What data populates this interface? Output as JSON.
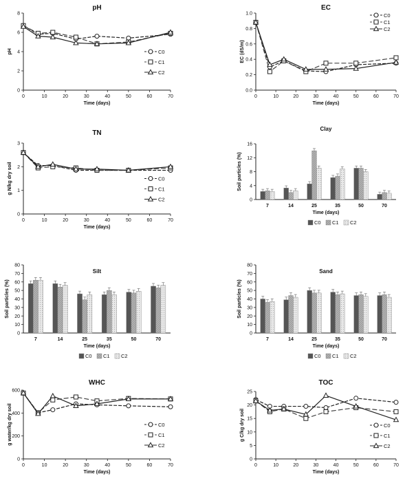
{
  "colors": {
    "c0_line": "#222222",
    "c1_line": "#444444",
    "c2_line": "#222222",
    "c0_bar": "#555555",
    "c1_bar": "#b3b3b3",
    "c2_bar": "#e8e8e8"
  },
  "chart_data": [
    {
      "type": "line",
      "title": "pH",
      "xlabel": "Time (days)",
      "ylabel": "pH",
      "x": [
        0,
        7,
        14,
        25,
        35,
        50,
        70
      ],
      "xlim": [
        0,
        70
      ],
      "ylim": [
        0,
        8
      ],
      "xticks": [
        "0",
        "10",
        "20",
        "30",
        "40",
        "50",
        "60",
        "70"
      ],
      "yticks": [
        "0",
        "2",
        "4",
        "6",
        "8"
      ],
      "legend_position": "right",
      "series": [
        {
          "name": "C0",
          "values": [
            6.7,
            5.8,
            5.9,
            5.3,
            5.6,
            5.4,
            5.8
          ]
        },
        {
          "name": "C1",
          "values": [
            6.7,
            5.9,
            6.0,
            5.5,
            4.8,
            5.0,
            5.9
          ]
        },
        {
          "name": "C2",
          "values": [
            6.6,
            5.6,
            5.5,
            4.9,
            4.8,
            4.9,
            6.0
          ]
        }
      ]
    },
    {
      "type": "line",
      "title": "EC",
      "xlabel": "Time (days)",
      "ylabel": "EC (dS/m)",
      "x": [
        0,
        7,
        14,
        25,
        35,
        50,
        70
      ],
      "xlim": [
        0,
        70
      ],
      "ylim": [
        0,
        1.0
      ],
      "xticks": [
        "0",
        "10",
        "20",
        "30",
        "40",
        "50",
        "60",
        "70"
      ],
      "yticks": [
        "0.0",
        "0.2",
        "0.4",
        "0.6",
        "0.8",
        "1.0"
      ],
      "legend_position": "top-right",
      "series": [
        {
          "name": "C0",
          "values": [
            0.88,
            0.3,
            0.38,
            0.25,
            0.24,
            0.33,
            0.35
          ]
        },
        {
          "name": "C1",
          "values": [
            0.88,
            0.24,
            0.38,
            0.24,
            0.35,
            0.35,
            0.42
          ]
        },
        {
          "name": "C2",
          "values": [
            0.88,
            0.33,
            0.4,
            0.27,
            0.27,
            0.28,
            0.36
          ]
        }
      ]
    },
    {
      "type": "line",
      "title": "TN",
      "xlabel": "Time (days)",
      "ylabel": "g N/kg dry soil",
      "x": [
        0,
        7,
        14,
        25,
        35,
        50,
        70
      ],
      "xlim": [
        0,
        70
      ],
      "ylim": [
        0,
        3
      ],
      "xticks": [
        "0",
        "10",
        "20",
        "30",
        "40",
        "50",
        "60",
        "70"
      ],
      "yticks": [
        "0",
        "1",
        "2",
        "3"
      ],
      "legend_position": "right",
      "series": [
        {
          "name": "C0",
          "values": [
            2.6,
            2.05,
            2.05,
            1.85,
            1.85,
            1.85,
            1.85
          ]
        },
        {
          "name": "C1",
          "values": [
            2.6,
            1.95,
            2.0,
            1.95,
            1.85,
            1.85,
            1.95
          ]
        },
        {
          "name": "C2",
          "values": [
            2.6,
            2.0,
            2.1,
            1.9,
            1.9,
            1.85,
            2.0
          ]
        }
      ]
    },
    {
      "type": "bar",
      "title": "Clay",
      "xlabel": "Time (days)",
      "ylabel": "Soil particles (%)",
      "categories": [
        "7",
        "14",
        "25",
        "35",
        "50",
        "70"
      ],
      "ylim": [
        0,
        16
      ],
      "yticks": [
        "0",
        "4",
        "8",
        "12",
        "16"
      ],
      "legend_position": "bottom",
      "series": [
        {
          "name": "C0",
          "values": [
            2.3,
            3.3,
            4.5,
            6.3,
            9.0,
            1.5
          ]
        },
        {
          "name": "C1",
          "values": [
            2.5,
            2.0,
            14.0,
            6.7,
            9.0,
            2.0
          ]
        },
        {
          "name": "C2",
          "values": [
            2.3,
            2.5,
            9.0,
            8.8,
            8.0,
            1.8
          ]
        }
      ]
    },
    {
      "type": "bar",
      "title": "Silt",
      "xlabel": "Time (days)",
      "ylabel": "Soil particles (%)",
      "categories": [
        "7",
        "14",
        "25",
        "35",
        "50",
        "70"
      ],
      "ylim": [
        0,
        80
      ],
      "yticks": [
        "0",
        "10",
        "20",
        "30",
        "40",
        "50",
        "60",
        "70",
        "80"
      ],
      "legend_position": "bottom",
      "series": [
        {
          "name": "C0",
          "values": [
            58,
            58,
            46,
            45,
            48,
            55
          ]
        },
        {
          "name": "C1",
          "values": [
            62,
            54,
            39,
            50,
            47,
            53
          ]
        },
        {
          "name": "C2",
          "values": [
            62,
            56,
            45,
            45,
            49,
            56
          ]
        }
      ]
    },
    {
      "type": "bar",
      "title": "Sand",
      "xlabel": "Time (days)",
      "ylabel": "Soil particles (%)",
      "categories": [
        "7",
        "14",
        "25",
        "35",
        "50",
        "70"
      ],
      "ylim": [
        0,
        80
      ],
      "yticks": [
        "0",
        "10",
        "20",
        "30",
        "40",
        "50",
        "60",
        "70",
        "80"
      ],
      "legend_position": "bottom",
      "series": [
        {
          "name": "C0",
          "values": [
            40,
            39,
            50,
            48,
            44,
            44
          ]
        },
        {
          "name": "C1",
          "values": [
            36,
            44,
            47,
            45,
            45,
            45
          ]
        },
        {
          "name": "C2",
          "values": [
            37,
            42,
            47,
            46,
            43,
            42
          ]
        }
      ]
    },
    {
      "type": "line",
      "title": "WHC",
      "xlabel": "Time (days)",
      "ylabel": "g water/kg dry soil",
      "x": [
        0,
        7,
        14,
        25,
        35,
        50,
        70
      ],
      "xlim": [
        0,
        70
      ],
      "ylim": [
        0,
        700
      ],
      "xticks": [
        "0",
        "10",
        "20",
        "30",
        "40",
        "50",
        "60",
        "70"
      ],
      "yticks": [
        "0",
        "200",
        "400",
        "600"
      ],
      "legend_position": "right",
      "series": [
        {
          "name": "C0",
          "values": [
            670,
            470,
            500,
            560,
            550,
            540,
            530
          ]
        },
        {
          "name": "C1",
          "values": [
            670,
            470,
            600,
            630,
            590,
            615,
            610
          ]
        },
        {
          "name": "C2",
          "values": [
            670,
            460,
            640,
            540,
            560,
            610,
            610
          ]
        }
      ]
    },
    {
      "type": "line",
      "title": "TOC",
      "xlabel": "Time (days)",
      "ylabel": "g C/kg dry soil",
      "x": [
        0,
        7,
        14,
        25,
        35,
        50,
        70
      ],
      "xlim": [
        0,
        70
      ],
      "ylim": [
        0,
        25
      ],
      "xticks": [
        "0",
        "10",
        "20",
        "30",
        "40",
        "50",
        "60",
        "70"
      ],
      "yticks": [
        "0",
        "5",
        "10",
        "15",
        "20",
        "25"
      ],
      "legend_position": "right",
      "series": [
        {
          "name": "C0",
          "values": [
            22,
            19.5,
            19.5,
            19.5,
            19.0,
            22.5,
            21.0
          ]
        },
        {
          "name": "C1",
          "values": [
            21.5,
            17.5,
            18.5,
            15.0,
            17.5,
            19.0,
            17.5
          ]
        },
        {
          "name": "C2",
          "values": [
            21.5,
            18.0,
            18.5,
            16.5,
            23.5,
            19.5,
            14.5
          ]
        }
      ]
    }
  ]
}
